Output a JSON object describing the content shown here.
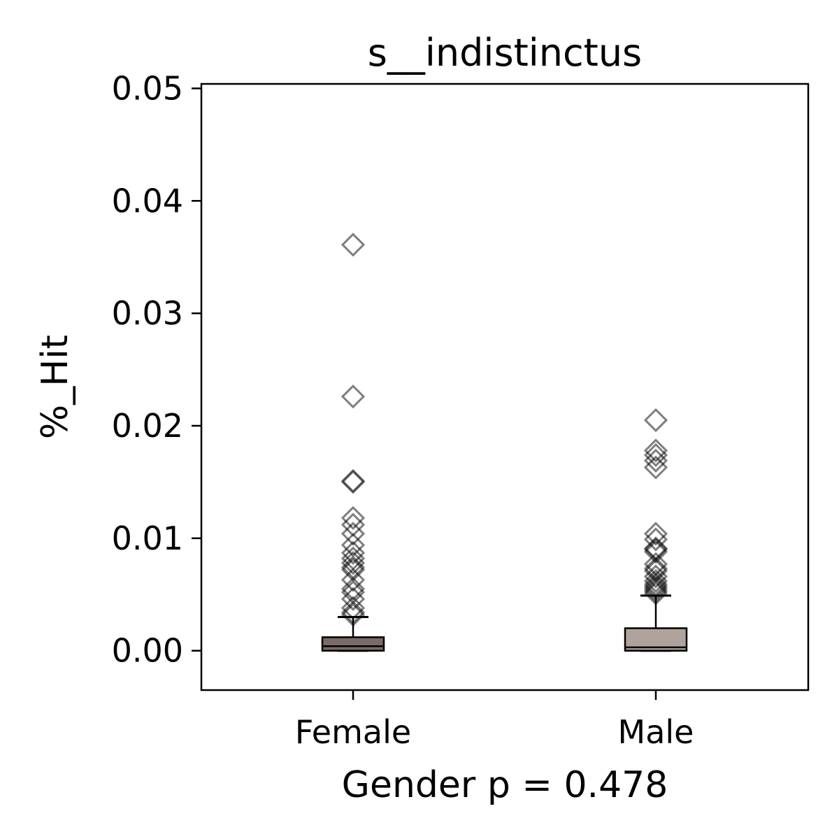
{
  "chart_data": {
    "type": "box",
    "title": "s__indistinctus",
    "xlabel": "Gender p = 0.478",
    "ylabel": "%_Hit",
    "ylim": [
      -0.0035,
      0.0504
    ],
    "yticks": [
      0.0,
      0.01,
      0.02,
      0.03,
      0.04,
      0.05
    ],
    "ytick_labels": [
      "0.00",
      "0.01",
      "0.02",
      "0.03",
      "0.04",
      "0.05"
    ],
    "categories": [
      "Female",
      "Male"
    ],
    "grid": false,
    "boxes": [
      {
        "name": "Female",
        "whisker_low": 0.0,
        "q1": 0.0,
        "median": 0.0004,
        "q3": 0.0012,
        "whisker_high": 0.003,
        "color": "#7a6b66",
        "outliers": [
          0.0361,
          0.0226,
          0.0151,
          0.015,
          0.0118,
          0.0112,
          0.0104,
          0.0094,
          0.0087,
          0.0082,
          0.0078,
          0.0074,
          0.0072,
          0.0063,
          0.0055,
          0.0052,
          0.0046,
          0.0038,
          0.0034,
          0.0032
        ]
      },
      {
        "name": "Male",
        "whisker_low": 0.0,
        "q1": 0.0,
        "median": 0.0003,
        "q3": 0.002,
        "whisker_high": 0.0049,
        "color": "#b0a39b",
        "outliers": [
          0.0205,
          0.0178,
          0.0174,
          0.0169,
          0.0163,
          0.0104,
          0.0099,
          0.0091,
          0.009,
          0.0088,
          0.0077,
          0.0073,
          0.0071,
          0.0066,
          0.0062,
          0.0059,
          0.0057,
          0.0055,
          0.0053,
          0.0051
        ]
      }
    ]
  }
}
